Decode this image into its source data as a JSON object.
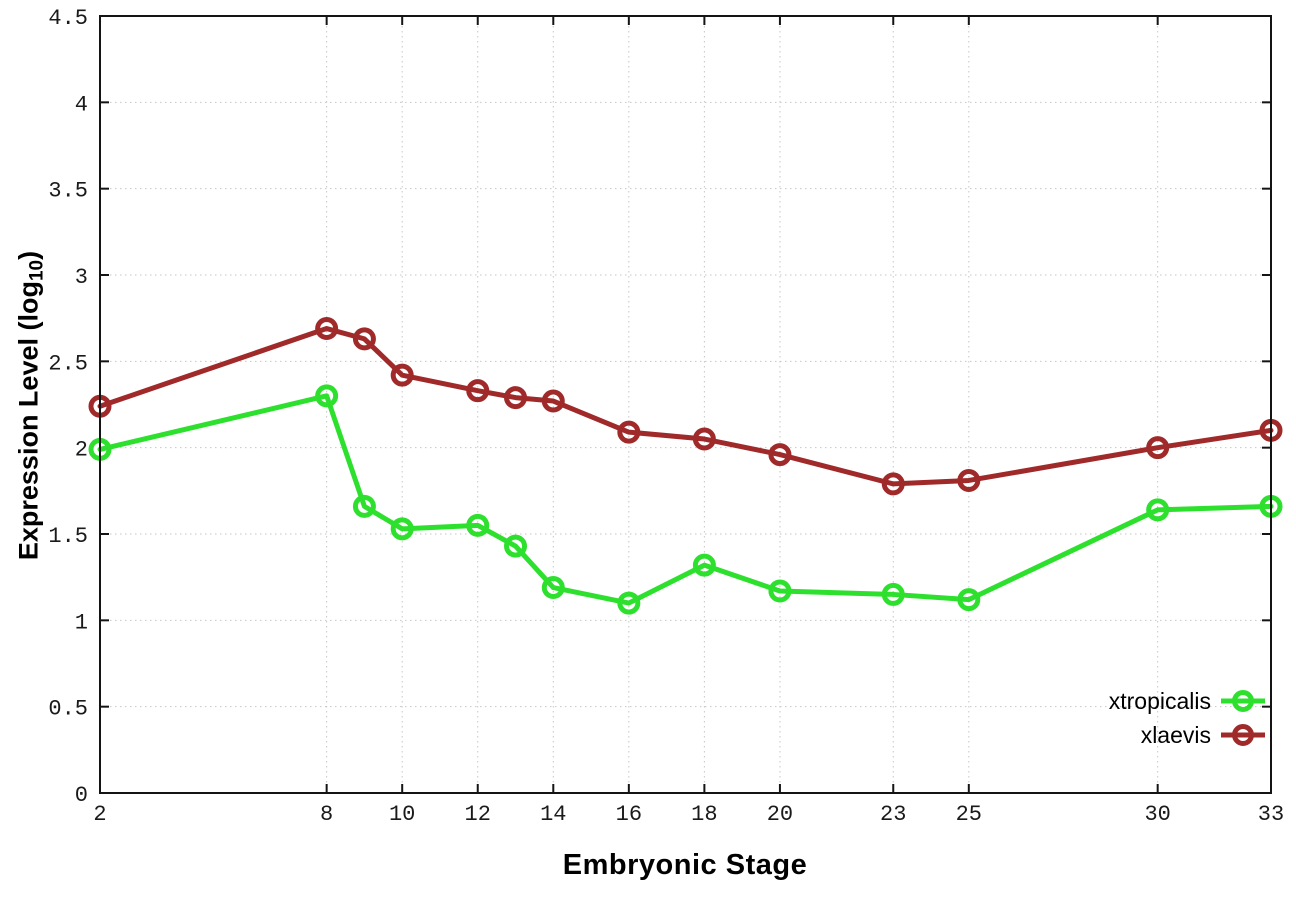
{
  "figure": {
    "xlabel": "Embryonic Stage",
    "ylabel": {
      "prefix": "Expression Level (log",
      "subscript": "10",
      "suffix": ")"
    }
  },
  "chart_data": {
    "type": "line",
    "title": "",
    "xlabel": "Embryonic Stage",
    "ylabel": "Expression Level (log10)",
    "x": [
      2,
      8,
      9,
      10,
      12,
      13,
      14,
      16,
      18,
      20,
      23,
      25,
      30,
      33
    ],
    "series": [
      {
        "name": "xtropicalis",
        "color": "#2ee02e",
        "values": [
          1.99,
          2.3,
          1.66,
          1.53,
          1.55,
          1.43,
          1.19,
          1.1,
          1.32,
          1.17,
          1.15,
          1.12,
          1.64,
          1.66
        ]
      },
      {
        "name": "xlaevis",
        "color": "#a02a2a",
        "values": [
          2.24,
          2.69,
          2.63,
          2.42,
          2.33,
          2.29,
          2.27,
          2.09,
          2.05,
          1.96,
          1.79,
          1.81,
          2.0,
          2.1
        ]
      }
    ],
    "xlim": [
      2,
      33
    ],
    "ylim": [
      0,
      4.5
    ],
    "x_ticks": [
      2,
      8,
      10,
      12,
      14,
      16,
      18,
      20,
      23,
      25,
      30,
      33
    ],
    "y_ticks": [
      0,
      0.5,
      1,
      1.5,
      2,
      2.5,
      3,
      3.5,
      4,
      4.5
    ],
    "grid": true,
    "grid_style": "dotted",
    "marker": "open-circle",
    "legend_position": "inside-bottom-right",
    "colors": {
      "grid": "#c6c6c6",
      "border": "#141414",
      "background": "#ffffff"
    }
  }
}
